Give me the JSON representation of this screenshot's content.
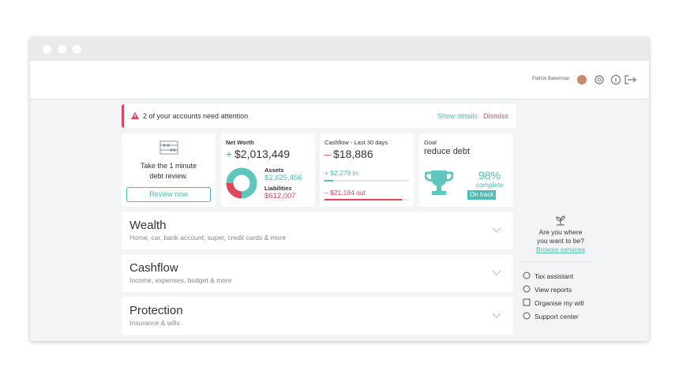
{
  "header": {
    "user": "Patrick Bakerman"
  },
  "alert": {
    "message": "2 of your accounts need attention",
    "show_details": "Show details",
    "dismiss": "Dismiss"
  },
  "cards": {
    "review": {
      "line1": "Take the 1 minute",
      "line2": "debt review.",
      "button": "Review now"
    },
    "net_worth": {
      "title": "Net Worth",
      "sign": "+",
      "value": "$2,013,449",
      "assets_label": "Assets",
      "assets": "$2,625,456",
      "liabilities_label": "Liabilities",
      "liabilities": "$612,007"
    },
    "cashflow": {
      "title": "Cashflow - Last 30 days",
      "sign": "–",
      "value": "$18,886",
      "in": "+ $2,279 in",
      "out": "– $21,164 out"
    },
    "goal": {
      "label": "Goal",
      "title": "reduce debt",
      "percent": "98%",
      "complete": "complete",
      "status": "On track"
    }
  },
  "sections": [
    {
      "title": "Wealth",
      "subtitle": "Home, car, bank account, super, credit cards & more"
    },
    {
      "title": "Cashflow",
      "subtitle": "Income, expenses, budget & more"
    },
    {
      "title": "Protection",
      "subtitle": "Insurance & wills"
    }
  ],
  "sidebar": {
    "line1": "Are you where",
    "line2": "you want to be?",
    "link": "Browse services",
    "links": [
      "Tax assistant",
      "View reports",
      "Organise my will",
      "Support center"
    ]
  }
}
